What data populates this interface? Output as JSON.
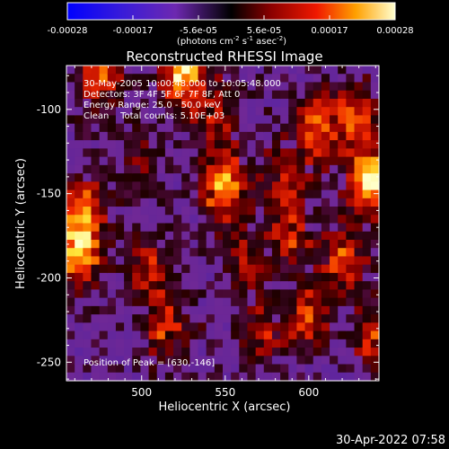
{
  "chart_data": {
    "type": "heatmap",
    "title": "Reconstructed RHESSI Image",
    "xlabel": "Heliocentric X (arcsec)",
    "ylabel": "Heliocentric Y (arcsec)",
    "xlim": [
      455,
      642
    ],
    "ylim": [
      -261,
      -74
    ],
    "x_ticks": [
      500,
      550,
      600
    ],
    "y_ticks": [
      -100,
      -150,
      -200,
      -250
    ],
    "colorbar": {
      "ticks": [
        "-0.00028",
        "-0.00017",
        "-5.6e-05",
        "5.6e-05",
        "0.00017",
        "0.00028"
      ],
      "range": [
        -0.00028,
        0.00028
      ],
      "label_parts": [
        "(photons cm",
        "-2",
        " s",
        "-1",
        " asec",
        "-2",
        ")"
      ]
    },
    "annotations": [
      "30-May-2005 10:00:48.000 to 10:05:48.000",
      "Detectors: 3F 4F 5F 6F 7F 8F, Att 0",
      "Energy Range: 25.0 - 50.0 keV",
      "Clean    Total counts: 5.10E+03"
    ],
    "peak_label": "Position of Peak = [630,-146]",
    "peak": {
      "x": 630,
      "y": -146
    },
    "sources": [
      {
        "x": 637,
        "y": -143,
        "intensity": 1.0
      },
      {
        "x": 525,
        "y": -78,
        "intensity": 0.95
      },
      {
        "x": 462,
        "y": -186,
        "intensity": 0.9
      },
      {
        "x": 549,
        "y": -146,
        "intensity": 0.85
      },
      {
        "x": 465,
        "y": -160,
        "intensity": 0.7
      },
      {
        "x": 605,
        "y": -110,
        "intensity": 0.7
      },
      {
        "x": 630,
        "y": -105,
        "intensity": 0.65
      },
      {
        "x": 475,
        "y": -82,
        "intensity": 0.6
      },
      {
        "x": 622,
        "y": -190,
        "intensity": 0.6
      },
      {
        "x": 600,
        "y": -222,
        "intensity": 0.55
      },
      {
        "x": 590,
        "y": -175,
        "intensity": 0.5
      },
      {
        "x": 505,
        "y": -195,
        "intensity": 0.5
      },
      {
        "x": 515,
        "y": -230,
        "intensity": 0.5
      },
      {
        "x": 570,
        "y": -232,
        "intensity": 0.45
      },
      {
        "x": 640,
        "y": -235,
        "intensity": 0.5
      },
      {
        "x": 545,
        "y": -105,
        "intensity": 0.45
      },
      {
        "x": 500,
        "y": -130,
        "intensity": 0.35
      },
      {
        "x": 560,
        "y": -190,
        "intensity": 0.4
      },
      {
        "x": 585,
        "y": -142,
        "intensity": 0.45
      }
    ]
  },
  "footer": {
    "timestamp": "30-Apr-2022 07:58"
  }
}
